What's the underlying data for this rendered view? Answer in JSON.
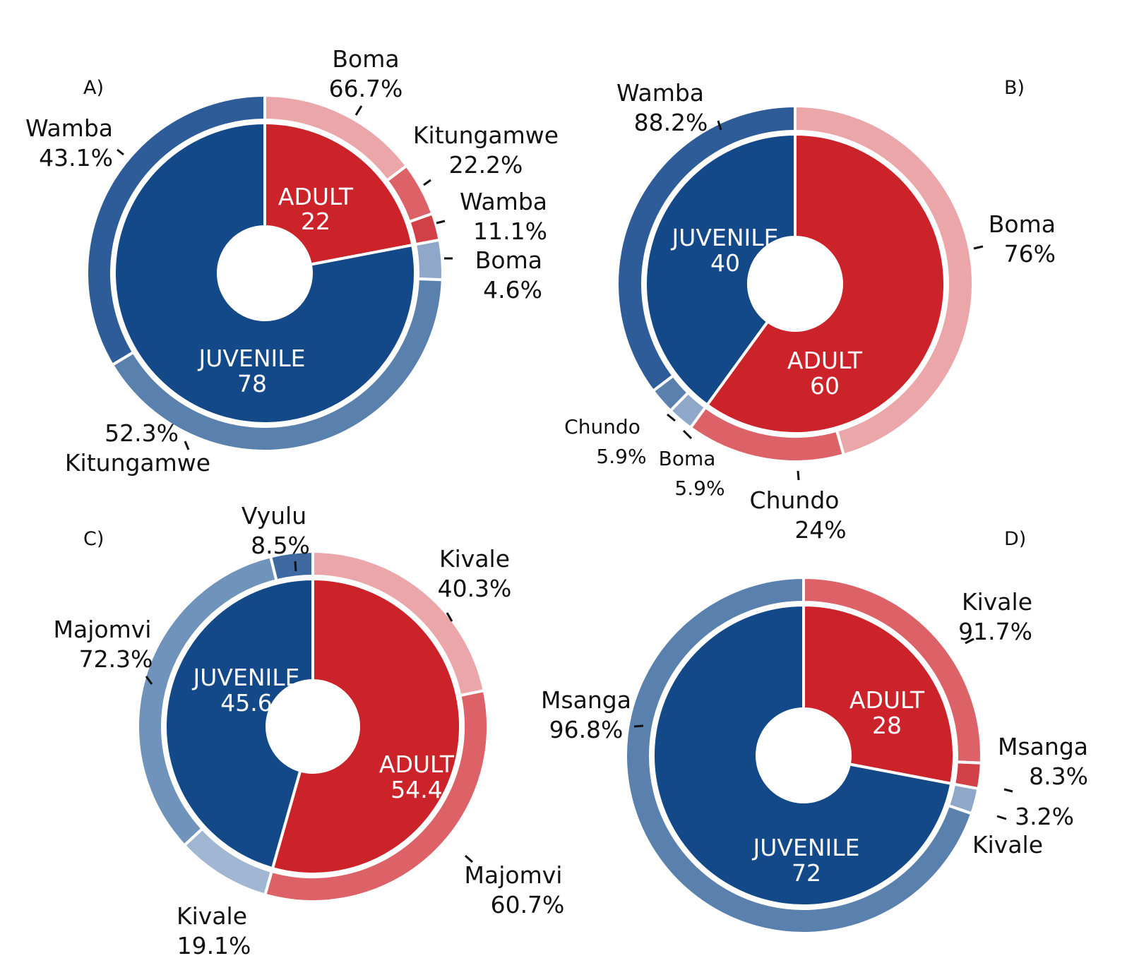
{
  "colors": {
    "juvenile_inner": "#134989",
    "adult_inner": "#CC2229",
    "blue_shades": [
      "#2E5C98",
      "#5A80AD",
      "#8FA8C9",
      "#7093BC",
      "#A1B6D3",
      "#3F6AA1"
    ],
    "red_shades": [
      "#EBA6A9",
      "#DD6267",
      "#D24047"
    ]
  },
  "chart_data": [
    {
      "type": "pie",
      "panel": "A)",
      "inner": [
        {
          "name": "ADULT",
          "value": 22,
          "label": "ADULT",
          "value_label": "22"
        },
        {
          "name": "JUVENILE",
          "value": 78,
          "label": "JUVENILE",
          "value_label": "78"
        }
      ],
      "outer": [
        {
          "group": "ADULT",
          "name": "Boma",
          "percent": 66.7,
          "pct_label": "66.7%"
        },
        {
          "group": "ADULT",
          "name": "Kitungamwe",
          "percent": 22.2,
          "pct_label": "22.2%"
        },
        {
          "group": "ADULT",
          "name": "Wamba",
          "percent": 11.1,
          "pct_label": "11.1%"
        },
        {
          "group": "JUVENILE",
          "name": "Boma",
          "percent": 4.6,
          "pct_label": "4.6%"
        },
        {
          "group": "JUVENILE",
          "name": "Kitungamwe",
          "percent": 52.3,
          "pct_label": "52.3%"
        },
        {
          "group": "JUVENILE",
          "name": "Wamba",
          "percent": 43.1,
          "pct_label": "43.1%"
        }
      ]
    },
    {
      "type": "pie",
      "panel": "B)",
      "inner": [
        {
          "name": "ADULT",
          "value": 60,
          "label": "ADULT",
          "value_label": "60"
        },
        {
          "name": "JUVENILE",
          "value": 40,
          "label": "JUVENILE",
          "value_label": "40"
        }
      ],
      "outer": [
        {
          "group": "ADULT",
          "name": "Boma",
          "percent": 76,
          "pct_label": "76%"
        },
        {
          "group": "ADULT",
          "name": "Chundo",
          "percent": 24,
          "pct_label": "24%"
        },
        {
          "group": "JUVENILE",
          "name": "Boma",
          "percent": 5.9,
          "pct_label": "5.9%"
        },
        {
          "group": "JUVENILE",
          "name": "Chundo",
          "percent": 5.9,
          "pct_label": "5.9%"
        },
        {
          "group": "JUVENILE",
          "name": "Wamba",
          "percent": 88.2,
          "pct_label": "88.2%"
        }
      ]
    },
    {
      "type": "pie",
      "panel": "C)",
      "inner": [
        {
          "name": "ADULT",
          "value": 54.4,
          "label": "ADULT",
          "value_label": "54.4"
        },
        {
          "name": "JUVENILE",
          "value": 45.6,
          "label": "JUVENILE",
          "value_label": "45.6"
        }
      ],
      "outer": [
        {
          "group": "ADULT",
          "name": "Kivale",
          "percent": 40.3,
          "pct_label": "40.3%"
        },
        {
          "group": "ADULT",
          "name": "Majomvi",
          "percent": 60.7,
          "pct_label": "60.7%"
        },
        {
          "group": "JUVENILE",
          "name": "Kivale",
          "percent": 19.1,
          "pct_label": "19.1%"
        },
        {
          "group": "JUVENILE",
          "name": "Majomvi",
          "percent": 72.3,
          "pct_label": "72.3%"
        },
        {
          "group": "JUVENILE",
          "name": "Vyulu",
          "percent": 8.5,
          "pct_label": "8.5%"
        }
      ]
    },
    {
      "type": "pie",
      "panel": "D)",
      "inner": [
        {
          "name": "ADULT",
          "value": 28,
          "label": "ADULT",
          "value_label": "28"
        },
        {
          "name": "JUVENILE",
          "value": 72,
          "label": "JUVENILE",
          "value_label": "72"
        }
      ],
      "outer": [
        {
          "group": "ADULT",
          "name": "Kivale",
          "percent": 91.7,
          "pct_label": "91.7%"
        },
        {
          "group": "ADULT",
          "name": "Msanga",
          "percent": 8.3,
          "pct_label": "8.3%"
        },
        {
          "group": "JUVENILE",
          "name": "Kivale",
          "percent": 3.2,
          "pct_label": "3.2%"
        },
        {
          "group": "JUVENILE",
          "name": "Msanga",
          "percent": 96.8,
          "pct_label": "96.8%"
        }
      ]
    }
  ]
}
